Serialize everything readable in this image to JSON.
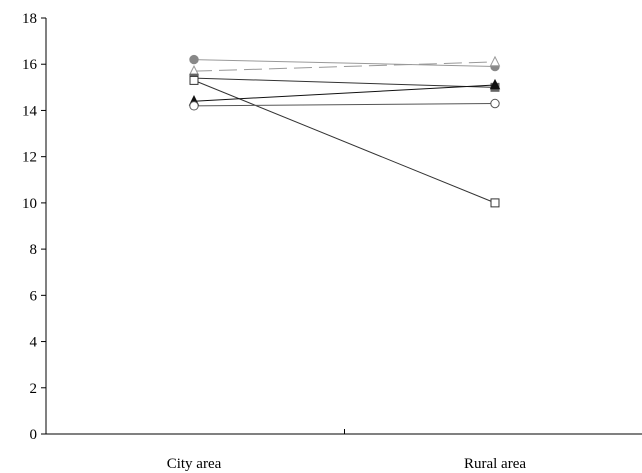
{
  "chart_data": {
    "type": "line",
    "title": "",
    "xlabel": "",
    "ylabel": "",
    "categories": [
      "City area",
      "Rural area"
    ],
    "ylim": [
      0,
      18
    ],
    "yticks": [
      0,
      2,
      4,
      6,
      8,
      10,
      12,
      14,
      16,
      18
    ],
    "grid": false,
    "legend": "none",
    "series": [
      {
        "values": [
          16.2,
          15.9
        ],
        "marker": "circle-filled",
        "color": "#888888",
        "line": "solid",
        "line_color": "#999999"
      },
      {
        "values": [
          15.7,
          16.1
        ],
        "marker": "triangle-open",
        "color": "#999999",
        "line": "dashed",
        "line_color": "#999999"
      },
      {
        "values": [
          15.4,
          15.0
        ],
        "marker": "square-filled",
        "color": "#666666",
        "line": "solid",
        "line_color": "#333333"
      },
      {
        "values": [
          15.3,
          10.0
        ],
        "marker": "square-open",
        "color": "#333333",
        "line": "solid",
        "line_color": "#333333"
      },
      {
        "values": [
          14.4,
          15.1
        ],
        "marker": "triangle-filled",
        "color": "#111111",
        "line": "solid",
        "line_color": "#111111"
      },
      {
        "values": [
          14.2,
          14.3
        ],
        "marker": "circle-open",
        "color": "#555555",
        "line": "solid",
        "line_color": "#555555"
      }
    ]
  }
}
